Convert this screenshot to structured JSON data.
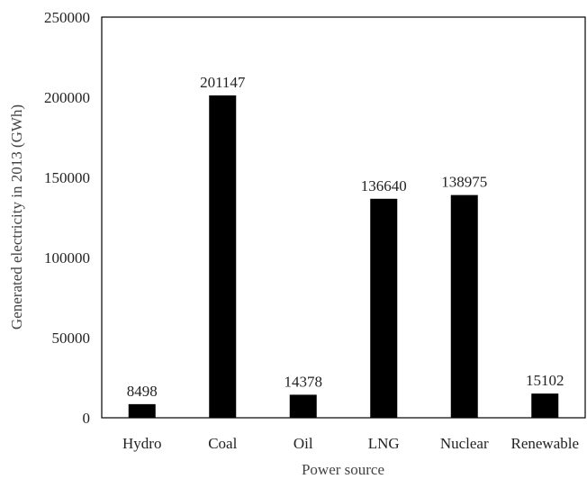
{
  "chart_data": {
    "type": "bar",
    "title": "",
    "xlabel": "Power source",
    "ylabel": "Generated electricity in 2013 (GWh)",
    "ylim": [
      0,
      250000
    ],
    "yticks": [
      "0",
      "50000",
      "100000",
      "150000",
      "200000",
      "250000"
    ],
    "categories": [
      "Hydro",
      "Coal",
      "Oil",
      "LNG",
      "Nuclear",
      "Renewable"
    ],
    "values": [
      8498,
      201147,
      14378,
      136640,
      138975,
      15102
    ],
    "data_labels": [
      "8498",
      "201147",
      "14378",
      "136640",
      "138975",
      "15102"
    ],
    "grid": false,
    "legend": "none",
    "bar_color": "#000000"
  }
}
